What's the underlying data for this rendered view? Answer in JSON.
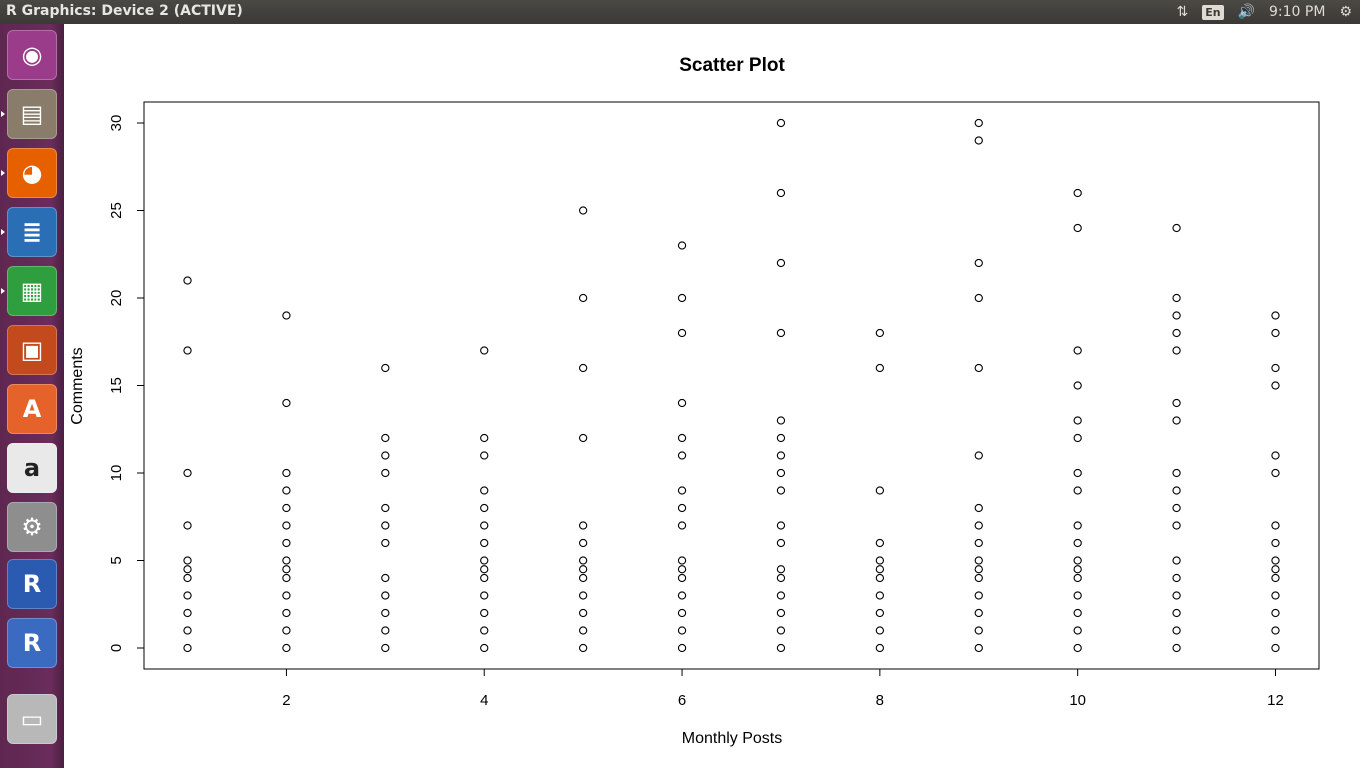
{
  "window": {
    "title": "R Graphics: Device 2 (ACTIVE)"
  },
  "topbar": {
    "language": "En",
    "clock": "9:10 PM",
    "icons": [
      "network-icon",
      "keyboard-language-icon",
      "volume-icon",
      "power-gear-icon"
    ]
  },
  "launcher": {
    "items": [
      {
        "name": "ubuntu-dash",
        "icon": "ubuntu-logo-icon",
        "color": "#9a3c8a"
      },
      {
        "name": "files",
        "icon": "file-cabinet-icon",
        "color": "#8a7c6a"
      },
      {
        "name": "firefox",
        "icon": "firefox-icon",
        "color": "#e66000"
      },
      {
        "name": "libreoffice-writer",
        "icon": "writer-document-icon",
        "color": "#2a6fb6"
      },
      {
        "name": "libreoffice-calc",
        "icon": "calc-spreadsheet-icon",
        "color": "#2f9e3e"
      },
      {
        "name": "libreoffice-impress",
        "icon": "impress-presentation-icon",
        "color": "#c24a1c"
      },
      {
        "name": "software-center",
        "icon": "shopping-bag-icon",
        "color": "#e5622a"
      },
      {
        "name": "amazon",
        "icon": "amazon-icon",
        "color": "#e9e9e9"
      },
      {
        "name": "system-settings",
        "icon": "settings-wrench-icon",
        "color": "#8e8e8e"
      },
      {
        "name": "r-gui",
        "icon": "r-logo-icon",
        "color": "#2b5bb0"
      },
      {
        "name": "r-editor",
        "icon": "r-logo-icon",
        "color": "#3a6bc0"
      },
      {
        "name": "workspaces",
        "icon": "workspace-stack-icon",
        "color": "#b8b8b8"
      }
    ]
  },
  "chart_data": {
    "type": "scatter",
    "title": "Scatter Plot",
    "xlabel": "Monthly Posts",
    "ylabel": "Comments",
    "xlim": [
      0.56,
      12.44
    ],
    "ylim": [
      -1.2,
      31.2
    ],
    "xticks": [
      2,
      4,
      6,
      8,
      10,
      12
    ],
    "yticks": [
      0,
      5,
      10,
      15,
      20,
      25,
      30
    ],
    "grid": false,
    "marker": "open-circle",
    "points_by_x": {
      "1": [
        21,
        17,
        10,
        7,
        5,
        4.5,
        4,
        3,
        2,
        1,
        0
      ],
      "2": [
        19,
        14,
        10,
        9,
        8,
        7,
        6,
        5,
        4.5,
        4,
        3,
        2,
        1,
        0
      ],
      "3": [
        16,
        12,
        11,
        10,
        8,
        7,
        6,
        4,
        3,
        2,
        1,
        0
      ],
      "4": [
        17,
        12,
        11,
        9,
        8,
        7,
        6,
        5,
        4.5,
        4,
        3,
        2,
        1,
        0
      ],
      "5": [
        25,
        20,
        16,
        12,
        7,
        6,
        5,
        4.5,
        4,
        3,
        2,
        1,
        0
      ],
      "6": [
        23,
        20,
        18,
        14,
        12,
        11,
        9,
        8,
        7,
        5,
        4.5,
        4,
        3,
        2,
        1,
        0
      ],
      "7": [
        30,
        26,
        22,
        18,
        13,
        12,
        11,
        10,
        9,
        7,
        6,
        4.5,
        4,
        3,
        2,
        1,
        0
      ],
      "8": [
        18,
        16,
        9,
        6,
        5,
        4.5,
        4,
        3,
        2,
        1,
        0
      ],
      "9": [
        30,
        29,
        22,
        20,
        16,
        11,
        8,
        7,
        6,
        5,
        4.5,
        4,
        3,
        2,
        1,
        0
      ],
      "10": [
        26,
        24,
        17,
        15,
        13,
        12,
        10,
        9,
        7,
        6,
        5,
        4.5,
        4,
        3,
        2,
        1,
        0
      ],
      "11": [
        24,
        20,
        19,
        18,
        17,
        14,
        13,
        10,
        9,
        8,
        7,
        5,
        4,
        3,
        2,
        1,
        0
      ],
      "12": [
        19,
        18,
        16,
        15,
        11,
        10,
        7,
        6,
        5,
        4.5,
        4,
        3,
        2,
        1,
        0
      ]
    }
  }
}
